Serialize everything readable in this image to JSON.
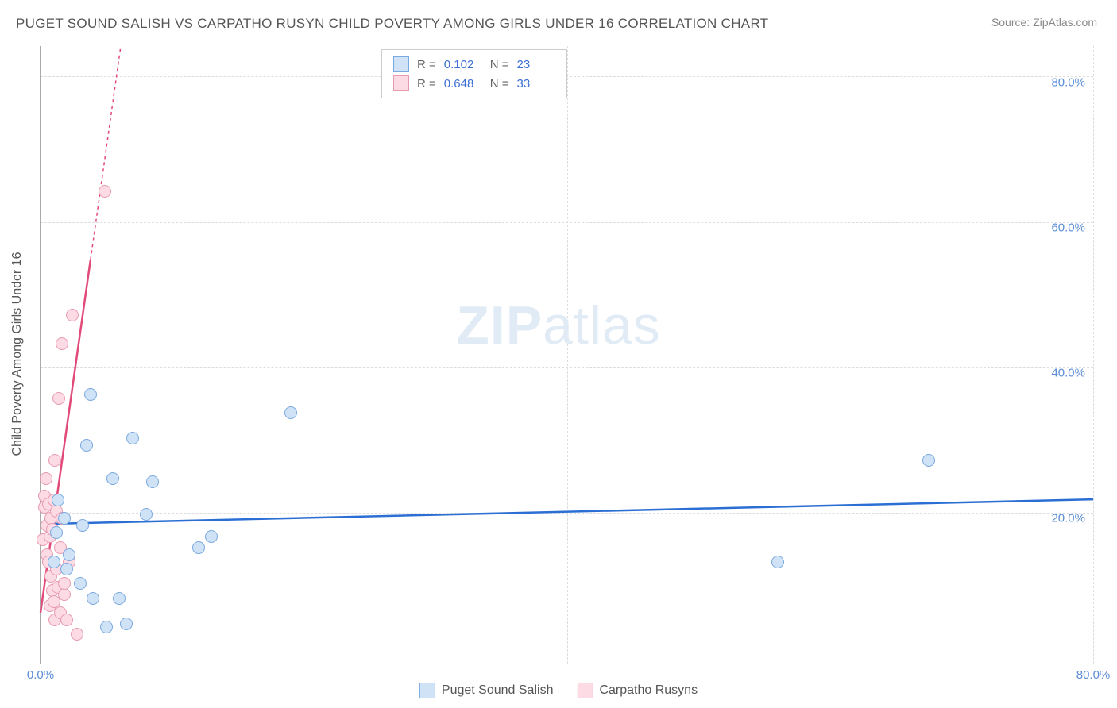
{
  "title": "PUGET SOUND SALISH VS CARPATHO RUSYN CHILD POVERTY AMONG GIRLS UNDER 16 CORRELATION CHART",
  "source": "Source: ZipAtlas.com",
  "ylabel": "Child Poverty Among Girls Under 16",
  "watermark_bold": "ZIP",
  "watermark_light": "atlas",
  "chart": {
    "type": "scatter",
    "xlim": [
      0,
      80
    ],
    "ylim": [
      0,
      85
    ],
    "xticks": [
      {
        "v": 0,
        "l": "0.0%"
      },
      {
        "v": 80,
        "l": "80.0%"
      }
    ],
    "yticks": [
      {
        "v": 20,
        "l": "20.0%"
      },
      {
        "v": 40,
        "l": "40.0%"
      },
      {
        "v": 60,
        "l": "60.0%"
      },
      {
        "v": 80,
        "l": "80.0%"
      }
    ],
    "xgrid": [
      40,
      80
    ],
    "ygrid": [
      20.8,
      40.8,
      60.8,
      80.8
    ],
    "background": "#ffffff",
    "grid_color": "#dddddd",
    "axis_color": "#aaaaaa",
    "tick_color": "#5a8dd6",
    "point_radius": 8,
    "point_border_width": 1,
    "trend_line_width": 2.5
  },
  "series": [
    {
      "name": "Puget Sound Salish",
      "fill": "#cfe2f6",
      "stroke": "#7aa9e0",
      "line_color": "#2b6fd4",
      "trend": {
        "x1": 0,
        "y1": 19.2,
        "x2": 80,
        "y2": 22.6,
        "dash": false
      },
      "points": [
        [
          1.0,
          14.0
        ],
        [
          1.2,
          18.0
        ],
        [
          1.3,
          22.5
        ],
        [
          1.8,
          20.0
        ],
        [
          2.0,
          13.0
        ],
        [
          2.2,
          15.0
        ],
        [
          3.0,
          11.0
        ],
        [
          3.2,
          19.0
        ],
        [
          3.5,
          30.0
        ],
        [
          3.8,
          37.0
        ],
        [
          4.0,
          9.0
        ],
        [
          5.0,
          5.0
        ],
        [
          5.5,
          25.5
        ],
        [
          6.0,
          9.0
        ],
        [
          6.5,
          5.5
        ],
        [
          7.0,
          31.0
        ],
        [
          8.0,
          20.5
        ],
        [
          8.5,
          25.0
        ],
        [
          12.0,
          16.0
        ],
        [
          13.0,
          17.5
        ],
        [
          19.0,
          34.5
        ],
        [
          56.0,
          14.0
        ],
        [
          67.5,
          28.0
        ]
      ]
    },
    {
      "name": "Carpatho Rusyns",
      "fill": "#fcdbe4",
      "stroke": "#e89ab0",
      "line_color": "#e24a7a",
      "trend": {
        "x1": 0,
        "y1": 7.0,
        "x2": 6.1,
        "y2": 85,
        "dash_from_x": 3.8
      },
      "points": [
        [
          0.2,
          17.0
        ],
        [
          0.3,
          23.0
        ],
        [
          0.3,
          21.5
        ],
        [
          0.4,
          25.5
        ],
        [
          0.5,
          19.0
        ],
        [
          0.5,
          15.0
        ],
        [
          0.6,
          14.0
        ],
        [
          0.6,
          22.0
        ],
        [
          0.7,
          17.5
        ],
        [
          0.7,
          8.0
        ],
        [
          0.8,
          12.0
        ],
        [
          0.8,
          20.0
        ],
        [
          0.9,
          10.0
        ],
        [
          0.9,
          18.5
        ],
        [
          1.0,
          22.5
        ],
        [
          1.0,
          8.5
        ],
        [
          1.1,
          6.0
        ],
        [
          1.1,
          28.0
        ],
        [
          1.2,
          13.0
        ],
        [
          1.2,
          21.0
        ],
        [
          1.3,
          10.5
        ],
        [
          1.4,
          36.5
        ],
        [
          1.5,
          7.0
        ],
        [
          1.5,
          16.0
        ],
        [
          1.6,
          20.0
        ],
        [
          1.6,
          44.0
        ],
        [
          1.8,
          9.5
        ],
        [
          1.8,
          11.0
        ],
        [
          2.0,
          6.0
        ],
        [
          2.2,
          14.0
        ],
        [
          2.4,
          48.0
        ],
        [
          2.8,
          4.0
        ],
        [
          4.9,
          65.0
        ]
      ]
    }
  ],
  "stat_legend": {
    "rows": [
      {
        "series": 0,
        "r_label": "R =",
        "r_value": "0.102",
        "n_label": "N =",
        "n_value": "23"
      },
      {
        "series": 1,
        "r_label": "R =",
        "r_value": "0.648",
        "n_label": "N =",
        "n_value": "33"
      }
    ]
  },
  "bottom_legend": [
    {
      "series": 0,
      "label": "Puget Sound Salish"
    },
    {
      "series": 1,
      "label": "Carpatho Rusyns"
    }
  ]
}
